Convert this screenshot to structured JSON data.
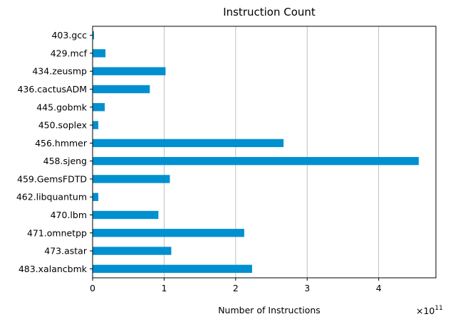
{
  "chart_data": {
    "type": "bar",
    "orientation": "horizontal",
    "title": "Instruction Count",
    "xlabel": "Number of Instructions",
    "ylabel": "",
    "x_scale_label": "×10",
    "x_scale_exponent": "11",
    "xlim": [
      0,
      4.8
    ],
    "xticks": [
      0,
      1,
      2,
      3,
      4
    ],
    "grid": "vertical",
    "legend": "none",
    "bar_color": "#0090d0",
    "categories": [
      "403.gcc",
      "429.mcf",
      "434.zeusmp",
      "436.cactusADM",
      "445.gobmk",
      "450.soplex",
      "456.hmmer",
      "458.sjeng",
      "459.GemsFDTD",
      "462.libquantum",
      "470.lbm",
      "471.omnetpp",
      "473.astar",
      "483.xalancbmk"
    ],
    "values": [
      0.02,
      0.18,
      1.02,
      0.8,
      0.17,
      0.08,
      2.67,
      4.56,
      1.08,
      0.08,
      0.92,
      2.12,
      1.1,
      2.23
    ]
  }
}
